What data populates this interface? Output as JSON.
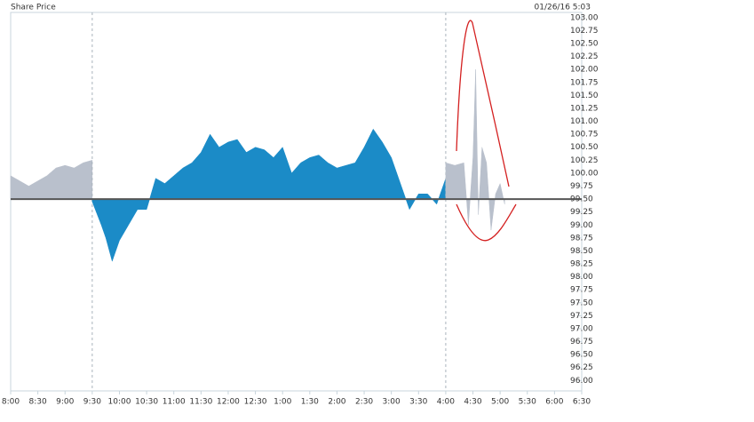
{
  "chart_data": {
    "type": "area",
    "title": "Share Price",
    "timestamp": "01/26/16  5:03",
    "baseline": 99.5,
    "baseline_color": "#555555",
    "grid": false,
    "xlim": [
      "08:00",
      "18:30"
    ],
    "xticks": [
      {
        "value": "08:00",
        "label": "8:00"
      },
      {
        "value": "08:30",
        "label": "8:30"
      },
      {
        "value": "09:00",
        "label": "9:00"
      },
      {
        "value": "09:30",
        "label": "9:30"
      },
      {
        "value": "10:00",
        "label": "10:00"
      },
      {
        "value": "10:30",
        "label": "10:30"
      },
      {
        "value": "11:00",
        "label": "11:00"
      },
      {
        "value": "11:30",
        "label": "11:30"
      },
      {
        "value": "12:00",
        "label": "12:00"
      },
      {
        "value": "12:30",
        "label": "12:30"
      },
      {
        "value": "13:00",
        "label": "1:00"
      },
      {
        "value": "13:30",
        "label": "1:30"
      },
      {
        "value": "14:00",
        "label": "2:00"
      },
      {
        "value": "14:30",
        "label": "2:30"
      },
      {
        "value": "15:00",
        "label": "3:00"
      },
      {
        "value": "15:30",
        "label": "3:30"
      },
      {
        "value": "16:00",
        "label": "4:00"
      },
      {
        "value": "16:30",
        "label": "4:30"
      },
      {
        "value": "17:00",
        "label": "5:00"
      },
      {
        "value": "17:30",
        "label": "5:30"
      },
      {
        "value": "18:00",
        "label": "6:00"
      },
      {
        "value": "18:30",
        "label": "6:30"
      }
    ],
    "ylim": [
      95.8,
      103.1
    ],
    "yticks": [
      {
        "value": 96,
        "label": "96.00"
      },
      {
        "value": 96.25,
        "label": "96.25"
      },
      {
        "value": 96.5,
        "label": "96.50"
      },
      {
        "value": 96.75,
        "label": "96.75"
      },
      {
        "value": 97,
        "label": "97.00"
      },
      {
        "value": 97.25,
        "label": "97.25"
      },
      {
        "value": 97.5,
        "label": "97.50"
      },
      {
        "value": 97.75,
        "label": "97.75"
      },
      {
        "value": 98,
        "label": "98.00"
      },
      {
        "value": 98.25,
        "label": "98.25"
      },
      {
        "value": 98.5,
        "label": "98.50"
      },
      {
        "value": 98.75,
        "label": "98.75"
      },
      {
        "value": 99,
        "label": "99.00"
      },
      {
        "value": 99.25,
        "label": "99.25"
      },
      {
        "value": 99.5,
        "label": "99.50"
      },
      {
        "value": 99.75,
        "label": "99.75"
      },
      {
        "value": 100,
        "label": "100.00"
      },
      {
        "value": 100.25,
        "label": "100.25"
      },
      {
        "value": 100.5,
        "label": "100.50"
      },
      {
        "value": 100.75,
        "label": "100.75"
      },
      {
        "value": 101,
        "label": "101.00"
      },
      {
        "value": 101.25,
        "label": "101.25"
      },
      {
        "value": 101.5,
        "label": "101.50"
      },
      {
        "value": 101.75,
        "label": "101.75"
      },
      {
        "value": 102,
        "label": "102.00"
      },
      {
        "value": 102.25,
        "label": "102.25"
      },
      {
        "value": 102.5,
        "label": "102.50"
      },
      {
        "value": 102.75,
        "label": "102.75"
      },
      {
        "value": 103,
        "label": "103.00"
      }
    ],
    "series": [
      {
        "color": "#b9c0cc",
        "x": [
          "08:00",
          "08:10",
          "08:20",
          "08:30",
          "08:40",
          "08:50",
          "09:00",
          "09:10",
          "09:20",
          "09:30"
        ],
        "values": [
          99.95,
          99.85,
          99.75,
          99.85,
          99.95,
          100.1,
          100.15,
          100.1,
          100.2,
          100.25
        ]
      },
      {
        "color": "#1b8bc7",
        "x": [
          "09:30",
          "09:40",
          "09:45",
          "09:52",
          "10:00",
          "10:10",
          "10:20",
          "10:30",
          "10:40",
          "10:50",
          "11:00",
          "11:10",
          "11:20",
          "11:30",
          "11:40",
          "11:50",
          "12:00",
          "12:10",
          "12:20",
          "12:30",
          "12:40",
          "12:50",
          "13:00",
          "13:10",
          "13:20",
          "13:30",
          "13:40",
          "13:50",
          "14:00",
          "14:10",
          "14:20",
          "14:30",
          "14:40",
          "14:50",
          "15:00",
          "15:10",
          "15:20",
          "15:30",
          "15:40",
          "15:50",
          "16:00"
        ],
        "values": [
          99.45,
          99.0,
          98.75,
          98.3,
          98.7,
          99.0,
          99.3,
          99.3,
          99.9,
          99.8,
          99.95,
          100.1,
          100.2,
          100.4,
          100.75,
          100.5,
          100.6,
          100.65,
          100.4,
          100.5,
          100.45,
          100.3,
          100.5,
          100.0,
          100.2,
          100.3,
          100.35,
          100.2,
          100.1,
          100.15,
          100.2,
          100.5,
          100.85,
          100.6,
          100.3,
          99.8,
          99.3,
          99.6,
          99.6,
          99.4,
          99.9
        ]
      },
      {
        "color": "#b9c0cc",
        "x": [
          "16:00",
          "16:10",
          "16:20",
          "16:25",
          "16:30",
          "16:33",
          "16:36",
          "16:40",
          "16:45",
          "16:50",
          "16:55",
          "17:00",
          "17:05"
        ],
        "values": [
          100.2,
          100.15,
          100.2,
          99.0,
          100.3,
          102.0,
          99.2,
          100.5,
          100.2,
          98.9,
          99.6,
          99.8,
          99.4
        ]
      }
    ]
  }
}
